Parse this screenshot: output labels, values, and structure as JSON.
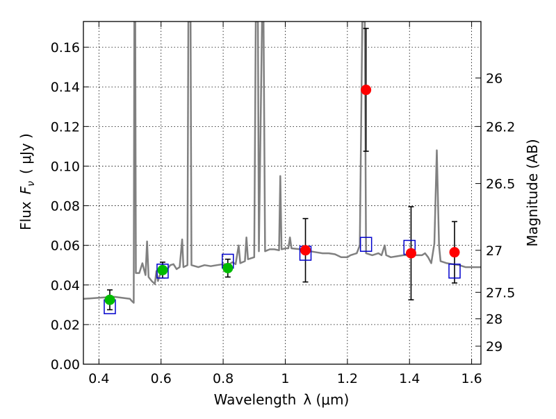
{
  "chart_data": {
    "type": "scatter",
    "xlabel_text": "Wavelength",
    "xlabel_math": "λ (μm)",
    "ylabel_text": "Flux",
    "ylabel_math": "F",
    "ylabel_sub": "ν",
    "ylabel_unit": "( μJy )",
    "right_label": "Magnitude (AB)",
    "xlim": [
      0.35,
      1.63
    ],
    "ylim": [
      0.0,
      0.173
    ],
    "x_ticks": [
      0.4,
      0.6,
      0.8,
      1.0,
      1.2,
      1.4,
      1.6
    ],
    "x_tick_labels": [
      "0.4",
      "0.6",
      "0.8",
      "1",
      "1.2",
      "1.4",
      "1.6"
    ],
    "y_ticks": [
      0.0,
      0.02,
      0.04,
      0.06,
      0.08,
      0.1,
      0.12,
      0.14,
      0.16
    ],
    "y_tick_labels": [
      "0.00",
      "0.02",
      "0.04",
      "0.06",
      "0.08",
      "0.10",
      "0.12",
      "0.14",
      "0.16"
    ],
    "right_ticks": [
      {
        "flux": 0.1445,
        "label": "26"
      },
      {
        "flux": 0.12,
        "label": "26.2"
      },
      {
        "flux": 0.0912,
        "label": "26.5"
      },
      {
        "flux": 0.0575,
        "label": "27"
      },
      {
        "flux": 0.0363,
        "label": "27.5"
      },
      {
        "flux": 0.0229,
        "label": "28"
      },
      {
        "flux": 0.0091,
        "label": "29"
      }
    ],
    "grid": true,
    "series": [
      {
        "kind": "model_spectrum",
        "color": "#808080",
        "points": [
          [
            0.35,
            0.033
          ],
          [
            0.4,
            0.0335
          ],
          [
            0.45,
            0.034
          ],
          [
            0.5,
            0.033
          ],
          [
            0.505,
            0.032
          ],
          [
            0.512,
            0.031
          ],
          [
            0.514,
            0.173
          ],
          [
            0.517,
            0.173
          ],
          [
            0.519,
            0.046
          ],
          [
            0.53,
            0.046
          ],
          [
            0.54,
            0.051
          ],
          [
            0.545,
            0.048
          ],
          [
            0.55,
            0.045
          ],
          [
            0.555,
            0.062
          ],
          [
            0.56,
            0.044
          ],
          [
            0.57,
            0.042
          ],
          [
            0.58,
            0.0405
          ],
          [
            0.585,
            0.047
          ],
          [
            0.59,
            0.042
          ],
          [
            0.6,
            0.047
          ],
          [
            0.62,
            0.048
          ],
          [
            0.63,
            0.05
          ],
          [
            0.64,
            0.0505
          ],
          [
            0.65,
            0.048
          ],
          [
            0.66,
            0.049
          ],
          [
            0.668,
            0.063
          ],
          [
            0.672,
            0.049
          ],
          [
            0.685,
            0.05
          ],
          [
            0.688,
            0.173
          ],
          [
            0.695,
            0.173
          ],
          [
            0.698,
            0.05
          ],
          [
            0.72,
            0.049
          ],
          [
            0.74,
            0.05
          ],
          [
            0.76,
            0.0495
          ],
          [
            0.78,
            0.05
          ],
          [
            0.8,
            0.0505
          ],
          [
            0.82,
            0.0505
          ],
          [
            0.83,
            0.0515
          ],
          [
            0.84,
            0.0505
          ],
          [
            0.85,
            0.06
          ],
          [
            0.855,
            0.051
          ],
          [
            0.87,
            0.052
          ],
          [
            0.875,
            0.064
          ],
          [
            0.88,
            0.053
          ],
          [
            0.9,
            0.054
          ],
          [
            0.905,
            0.173
          ],
          [
            0.912,
            0.173
          ],
          [
            0.915,
            0.057
          ],
          [
            0.925,
            0.173
          ],
          [
            0.93,
            0.173
          ],
          [
            0.935,
            0.057
          ],
          [
            0.95,
            0.058
          ],
          [
            0.965,
            0.058
          ],
          [
            0.98,
            0.0575
          ],
          [
            0.984,
            0.095
          ],
          [
            0.988,
            0.058
          ],
          [
            1.0,
            0.0585
          ],
          [
            1.01,
            0.0585
          ],
          [
            1.015,
            0.064
          ],
          [
            1.02,
            0.0585
          ],
          [
            1.05,
            0.058
          ],
          [
            1.08,
            0.057
          ],
          [
            1.1,
            0.0565
          ],
          [
            1.12,
            0.056
          ],
          [
            1.14,
            0.056
          ],
          [
            1.16,
            0.0555
          ],
          [
            1.18,
            0.054
          ],
          [
            1.2,
            0.054
          ],
          [
            1.21,
            0.055
          ],
          [
            1.23,
            0.056
          ],
          [
            1.24,
            0.06
          ],
          [
            1.248,
            0.173
          ],
          [
            1.256,
            0.173
          ],
          [
            1.26,
            0.056
          ],
          [
            1.28,
            0.055
          ],
          [
            1.3,
            0.056
          ],
          [
            1.31,
            0.055
          ],
          [
            1.32,
            0.06
          ],
          [
            1.325,
            0.055
          ],
          [
            1.34,
            0.054
          ],
          [
            1.36,
            0.0545
          ],
          [
            1.38,
            0.055
          ],
          [
            1.4,
            0.055
          ],
          [
            1.42,
            0.055
          ],
          [
            1.44,
            0.055
          ],
          [
            1.45,
            0.056
          ],
          [
            1.46,
            0.054
          ],
          [
            1.47,
            0.051
          ],
          [
            1.48,
            0.061
          ],
          [
            1.488,
            0.108
          ],
          [
            1.495,
            0.06
          ],
          [
            1.5,
            0.052
          ],
          [
            1.52,
            0.051
          ],
          [
            1.54,
            0.0505
          ],
          [
            1.56,
            0.05
          ],
          [
            1.58,
            0.049
          ],
          [
            1.6,
            0.049
          ],
          [
            1.63,
            0.049
          ]
        ]
      },
      {
        "kind": "model_photometry",
        "marker": "open-square",
        "color": "#0000cc",
        "x": [
          0.435,
          0.605,
          0.815,
          1.065,
          1.26,
          1.4,
          1.545
        ],
        "y": [
          0.029,
          0.047,
          0.052,
          0.056,
          0.0605,
          0.059,
          0.047
        ]
      },
      {
        "kind": "observed_optical",
        "marker": "filled-circle",
        "color": "#00bb00",
        "x": [
          0.435,
          0.605,
          0.815
        ],
        "y": [
          0.0325,
          0.0475,
          0.0485
        ],
        "err": [
          0.005,
          0.004,
          0.0045
        ]
      },
      {
        "kind": "observed_nir",
        "marker": "filled-circle",
        "color": "#ff0000",
        "x": [
          1.065,
          1.26,
          1.405,
          1.545
        ],
        "y": [
          0.0575,
          0.1385,
          0.056,
          0.0565
        ],
        "err": [
          0.016,
          0.031,
          0.0235,
          0.0155
        ]
      }
    ]
  }
}
